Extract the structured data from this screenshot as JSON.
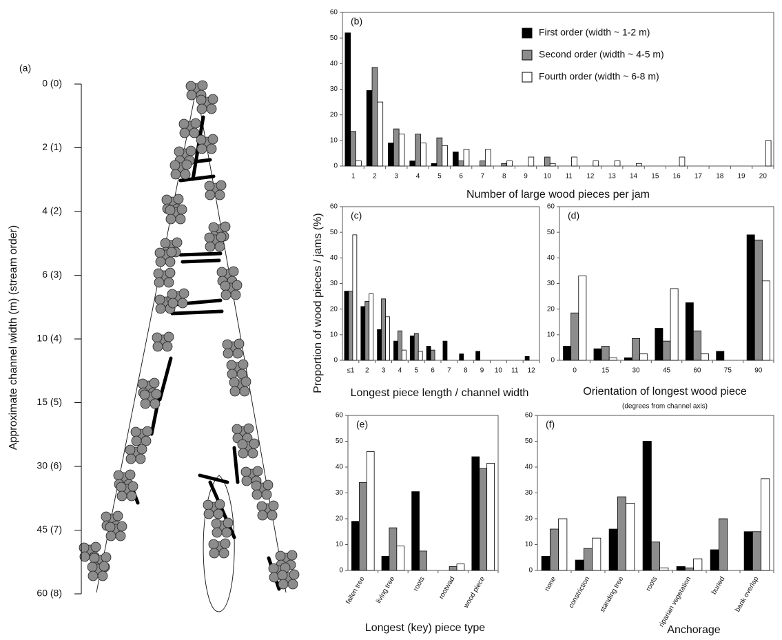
{
  "chart_data": [
    {
      "type": "diagram",
      "label": "(a)",
      "ylabel": "Approximate channel width (m) (stream order)",
      "categories": [
        "0 (0)",
        "2 (1)",
        "4 (2)",
        "6 (3)",
        "10 (4)",
        "15 (5)",
        "30 (6)",
        "45 (7)",
        "60 (8)"
      ]
    },
    {
      "type": "bar",
      "label": "(b)",
      "xlabel": "Number of large wood pieces per jam",
      "categories": [
        "1",
        "2",
        "3",
        "4",
        "5",
        "6",
        "7",
        "8",
        "9",
        "10",
        "11",
        "12",
        "13",
        "14",
        "15",
        "16",
        "17",
        "18",
        "19",
        "20"
      ],
      "ylim": [
        0,
        60
      ],
      "yticks": [
        0,
        10,
        20,
        30,
        40,
        50,
        60
      ],
      "legend": "top-right",
      "series": [
        {
          "name": "First order (width ~  1-2 m)",
          "color": "#000000",
          "values": [
            52,
            29.5,
            9,
            2,
            1,
            5.5,
            0,
            0,
            0,
            0,
            0,
            0,
            0,
            0,
            0,
            0,
            0,
            0,
            0,
            0
          ]
        },
        {
          "name": "Second order (width ~ 4-5 m)",
          "color": "#8c8c8c",
          "values": [
            13.5,
            38.5,
            14.5,
            12.5,
            11,
            2,
            2,
            1,
            0,
            3.5,
            0,
            0,
            0,
            0,
            0,
            0,
            0,
            0,
            0,
            0
          ]
        },
        {
          "name": "Fourth order (width ~ 6-8 m)",
          "color": "#ffffff",
          "values": [
            2,
            25,
            12.5,
            9,
            8,
            6.5,
            6.5,
            2,
            3.5,
            1,
            3.5,
            2,
            2,
            1,
            0,
            3.5,
            0,
            0,
            0,
            10
          ]
        }
      ]
    },
    {
      "type": "bar",
      "label": "(c)",
      "xlabel": "Longest piece length / channel width",
      "ylabel": "Proportion of wood pieces / jams (%)",
      "categories": [
        "≤1",
        "2",
        "3",
        "4",
        "5",
        "6",
        "7",
        "8",
        "9",
        "10",
        "11",
        "12"
      ],
      "ylim": [
        0,
        60
      ],
      "yticks": [
        0,
        10,
        20,
        30,
        40,
        50,
        60
      ],
      "series": [
        {
          "color": "#000000",
          "values": [
            27,
            21,
            12,
            7.5,
            9.5,
            5.5,
            7.5,
            2.5,
            3.5,
            0,
            0,
            1.5
          ]
        },
        {
          "color": "#8c8c8c",
          "values": [
            27,
            23,
            24,
            11.5,
            10.5,
            4,
            0,
            0,
            0,
            0,
            0,
            0
          ]
        },
        {
          "color": "#ffffff",
          "values": [
            49,
            26,
            17,
            4,
            3.5,
            0,
            0,
            0,
            0,
            0,
            0,
            0
          ]
        }
      ]
    },
    {
      "type": "bar",
      "label": "(d)",
      "xlabel": "Orientation of longest wood piece",
      "subtitle": "(degrees from channel axis)",
      "categories": [
        "0",
        "15",
        "30",
        "45",
        "60",
        "75",
        "90"
      ],
      "ylim": [
        0,
        60
      ],
      "yticks": [
        0,
        10,
        20,
        30,
        40,
        50,
        60
      ],
      "series": [
        {
          "color": "#000000",
          "values": [
            5.5,
            4.5,
            1,
            12.5,
            22.5,
            3.5,
            49
          ]
        },
        {
          "color": "#8c8c8c",
          "values": [
            18.5,
            5.5,
            8.5,
            7.5,
            11.5,
            0,
            47
          ]
        },
        {
          "color": "#ffffff",
          "values": [
            33,
            1,
            2.5,
            28,
            2.5,
            0,
            31
          ]
        }
      ]
    },
    {
      "type": "bar",
      "label": "(e)",
      "xlabel": "Longest (key) piece type",
      "categories": [
        "fallen tree",
        "living tree",
        "roots",
        "rootwad",
        "wood piece"
      ],
      "ylim": [
        0,
        60
      ],
      "yticks": [
        0,
        10,
        20,
        30,
        40,
        50,
        60
      ],
      "series": [
        {
          "color": "#000000",
          "values": [
            19,
            5.5,
            30.5,
            0,
            44
          ]
        },
        {
          "color": "#8c8c8c",
          "values": [
            34,
            16.5,
            7.5,
            1.5,
            39.5
          ]
        },
        {
          "color": "#ffffff",
          "values": [
            46,
            9.5,
            0,
            2.5,
            41.5
          ]
        }
      ]
    },
    {
      "type": "bar",
      "label": "(f)",
      "xlabel": "Anchorage",
      "categories": [
        "none",
        "constriction",
        "standing tree",
        "roots",
        "riparian vegetation",
        "buried",
        "bank overlap"
      ],
      "ylim": [
        0,
        60
      ],
      "yticks": [
        0,
        10,
        20,
        30,
        40,
        50,
        60
      ],
      "series": [
        {
          "color": "#000000",
          "values": [
            5.5,
            4,
            16,
            50,
            1.5,
            8,
            15
          ]
        },
        {
          "color": "#8c8c8c",
          "values": [
            16,
            8.5,
            28.5,
            11,
            1,
            20,
            15
          ]
        },
        {
          "color": "#ffffff",
          "values": [
            20,
            12.5,
            26,
            1,
            4.5,
            0,
            35.5
          ]
        }
      ]
    }
  ]
}
